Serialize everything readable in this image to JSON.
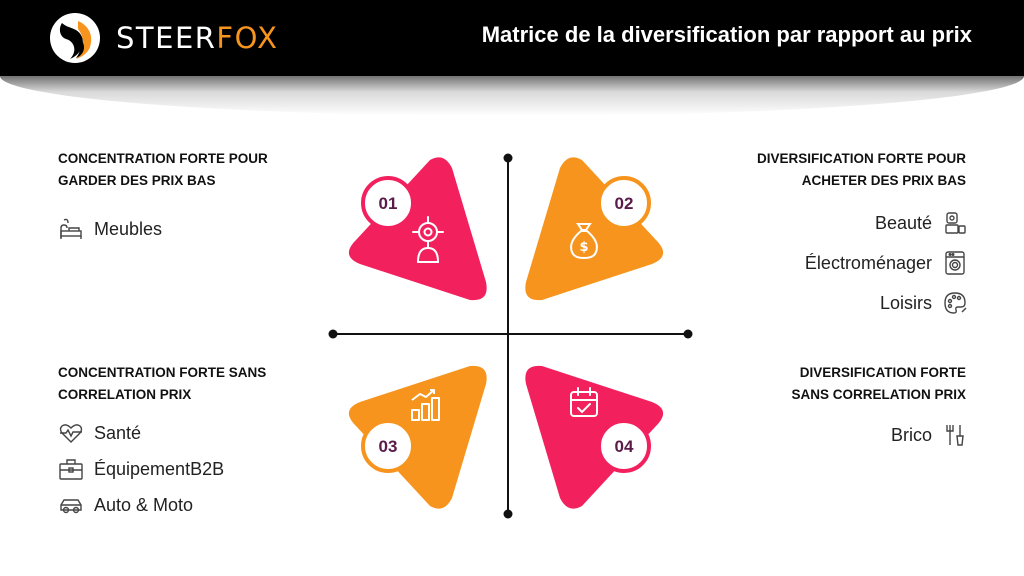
{
  "header": {
    "logo_part1": "STEER",
    "logo_part2": "FOX",
    "title": "Matrice de la diversification par rapport au prix"
  },
  "colors": {
    "pink": "#f2215e",
    "orange": "#f7941d",
    "header_bg": "#000000",
    "number_text": "#5a1a4a"
  },
  "quadrants": [
    {
      "number": "01",
      "title_line1": "CONCENTRATION FORTE POUR",
      "title_line2": "GARDER DES PRIX BAS",
      "shape_icon": "target-person-icon",
      "items": [
        {
          "label": "Meubles",
          "icon": "sofa-icon"
        }
      ]
    },
    {
      "number": "02",
      "title_line1": "DIVERSIFICATION FORTE POUR",
      "title_line2": "ACHETER DES PRIX BAS",
      "shape_icon": "money-bag-icon",
      "items": [
        {
          "label": "Beauté",
          "icon": "cosmetics-icon"
        },
        {
          "label": "Électroménager",
          "icon": "washing-machine-icon"
        },
        {
          "label": "Loisirs",
          "icon": "palette-icon"
        }
      ]
    },
    {
      "number": "03",
      "title_line1": "CONCENTRATION FORTE SANS",
      "title_line2": "CORRELATION PRIX",
      "shape_icon": "growth-chart-icon",
      "items": [
        {
          "label": "Santé",
          "icon": "heart-pulse-icon"
        },
        {
          "label": "ÉquipementB2B",
          "icon": "toolbox-icon"
        },
        {
          "label": "Auto & Moto",
          "icon": "car-icon"
        }
      ]
    },
    {
      "number": "04",
      "title_line1": "DIVERSIFICATION FORTE",
      "title_line2": "SANS CORRELATION PRIX",
      "shape_icon": "calendar-check-icon",
      "items": [
        {
          "label": "Brico",
          "icon": "tools-icon"
        }
      ]
    }
  ]
}
